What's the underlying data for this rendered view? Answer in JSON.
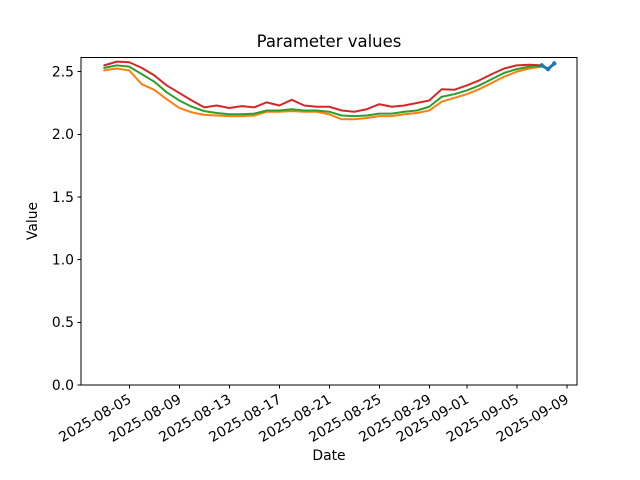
{
  "figure": {
    "background": "#ffffff",
    "spine_color": "#000000",
    "text_color": "#000000"
  },
  "chart_data": {
    "type": "line",
    "title": "Parameter values",
    "xlabel": "Date",
    "ylabel": "Value",
    "grid": false,
    "legend": "none",
    "ylim": [
      0,
      2.612
    ],
    "xlim_dates": [
      "2025-08-01T03:20:00",
      "2025-09-09T19:40:00"
    ],
    "yticks": [
      {
        "value": 0.0,
        "label": "0.0"
      },
      {
        "value": 0.5,
        "label": "0.5"
      },
      {
        "value": 1.0,
        "label": "1.0"
      },
      {
        "value": 1.5,
        "label": "1.5"
      },
      {
        "value": 2.0,
        "label": "2.0"
      },
      {
        "value": 2.5,
        "label": "2.5"
      }
    ],
    "xticks": [
      {
        "date": "2025-08-05",
        "label": "2025-08-05"
      },
      {
        "date": "2025-08-09",
        "label": "2025-08-09"
      },
      {
        "date": "2025-08-13",
        "label": "2025-08-13"
      },
      {
        "date": "2025-08-17",
        "label": "2025-08-17"
      },
      {
        "date": "2025-08-21",
        "label": "2025-08-21"
      },
      {
        "date": "2025-08-25",
        "label": "2025-08-25"
      },
      {
        "date": "2025-08-29",
        "label": "2025-08-29"
      },
      {
        "date": "2025-09-01",
        "label": "2025-09-01"
      },
      {
        "date": "2025-09-05",
        "label": "2025-09-05"
      },
      {
        "date": "2025-09-09",
        "label": "2025-09-09"
      }
    ],
    "xtick_rotation_deg": 30,
    "x_dates": [
      "2025-08-03",
      "2025-08-04",
      "2025-08-05",
      "2025-08-06",
      "2025-08-07",
      "2025-08-08",
      "2025-08-09",
      "2025-08-10",
      "2025-08-11",
      "2025-08-12",
      "2025-08-13",
      "2025-08-14",
      "2025-08-15",
      "2025-08-16",
      "2025-08-17",
      "2025-08-18",
      "2025-08-19",
      "2025-08-20",
      "2025-08-21",
      "2025-08-22",
      "2025-08-23",
      "2025-08-24",
      "2025-08-25",
      "2025-08-26",
      "2025-08-27",
      "2025-08-28",
      "2025-08-29",
      "2025-08-30",
      "2025-08-31",
      "2025-09-01",
      "2025-09-02",
      "2025-09-03",
      "2025-09-04",
      "2025-09-05",
      "2025-09-06",
      "2025-09-07"
    ],
    "series": [
      {
        "name": "orange-line",
        "color": "#ff7f0e",
        "linewidth": 2,
        "values": [
          2.51,
          2.525,
          2.51,
          2.4,
          2.355,
          2.28,
          2.21,
          2.175,
          2.155,
          2.15,
          2.145,
          2.145,
          2.15,
          2.18,
          2.18,
          2.185,
          2.18,
          2.18,
          2.16,
          2.12,
          2.12,
          2.13,
          2.145,
          2.145,
          2.16,
          2.17,
          2.19,
          2.26,
          2.29,
          2.32,
          2.36,
          2.41,
          2.46,
          2.5,
          2.525,
          2.54
        ]
      },
      {
        "name": "green-line",
        "color": "#2ca02c",
        "linewidth": 2,
        "values": [
          2.53,
          2.55,
          2.54,
          2.48,
          2.42,
          2.335,
          2.27,
          2.22,
          2.185,
          2.17,
          2.16,
          2.16,
          2.165,
          2.19,
          2.19,
          2.2,
          2.19,
          2.19,
          2.18,
          2.15,
          2.145,
          2.15,
          2.165,
          2.165,
          2.18,
          2.19,
          2.22,
          2.3,
          2.32,
          2.35,
          2.39,
          2.44,
          2.49,
          2.52,
          2.54,
          2.545
        ]
      },
      {
        "name": "red-line",
        "color": "#d62728",
        "linewidth": 2,
        "values": [
          2.55,
          2.58,
          2.575,
          2.53,
          2.47,
          2.39,
          2.33,
          2.27,
          2.215,
          2.23,
          2.21,
          2.225,
          2.215,
          2.255,
          2.23,
          2.275,
          2.23,
          2.22,
          2.22,
          2.19,
          2.18,
          2.2,
          2.24,
          2.22,
          2.23,
          2.25,
          2.27,
          2.36,
          2.355,
          2.39,
          2.43,
          2.48,
          2.525,
          2.55,
          2.555,
          2.55
        ]
      }
    ],
    "forecast_series": {
      "name": "blue-forecast-line",
      "color": "#1f77b4",
      "linewidth": 3,
      "marker_radius": 2.2,
      "points": [
        {
          "date": "2025-09-07T00:00:00",
          "value": 2.55
        },
        {
          "date": "2025-09-07T12:00:00",
          "value": 2.52
        },
        {
          "date": "2025-09-08T00:00:00",
          "value": 2.565
        }
      ]
    }
  }
}
